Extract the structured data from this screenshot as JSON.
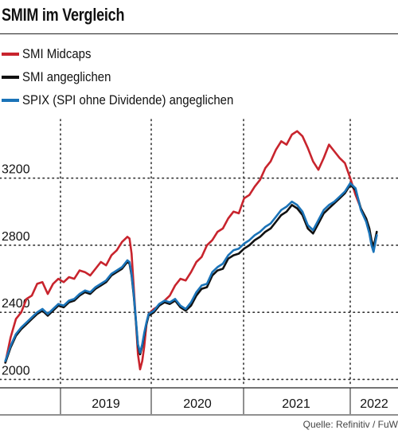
{
  "header": {
    "title": "SMIM im Vergleich"
  },
  "source": "Quelle: Refinitiv / FuW",
  "chart_data": {
    "type": "line",
    "title": "SMIM im Vergleich",
    "xlabel": "",
    "ylabel": "",
    "x_ticks": [
      "2019",
      "2020",
      "2021",
      "2022"
    ],
    "y_ticks": [
      2000,
      2400,
      2800,
      3200
    ],
    "xlim": [
      2018.5,
      2022.25
    ],
    "ylim": [
      1950,
      3550
    ],
    "grid": "dotted",
    "legend_position": "top-left",
    "series": [
      {
        "name": "SMI Midcaps",
        "color": "#c8242d",
        "points": [
          [
            2018.55,
            2100
          ],
          [
            2018.6,
            2250
          ],
          [
            2018.65,
            2360
          ],
          [
            2018.7,
            2400
          ],
          [
            2018.75,
            2480
          ],
          [
            2018.8,
            2500
          ],
          [
            2018.85,
            2570
          ],
          [
            2018.9,
            2580
          ],
          [
            2018.95,
            2510
          ],
          [
            2019.0,
            2570
          ],
          [
            2019.05,
            2600
          ],
          [
            2019.1,
            2580
          ],
          [
            2019.15,
            2610
          ],
          [
            2019.2,
            2600
          ],
          [
            2019.25,
            2650
          ],
          [
            2019.3,
            2640
          ],
          [
            2019.35,
            2620
          ],
          [
            2019.4,
            2660
          ],
          [
            2019.45,
            2700
          ],
          [
            2019.5,
            2680
          ],
          [
            2019.55,
            2740
          ],
          [
            2019.6,
            2770
          ],
          [
            2019.65,
            2820
          ],
          [
            2019.7,
            2850
          ],
          [
            2019.72,
            2840
          ],
          [
            2019.74,
            2750
          ],
          [
            2019.76,
            2550
          ],
          [
            2019.78,
            2350
          ],
          [
            2019.8,
            2150
          ],
          [
            2019.82,
            2060
          ],
          [
            2019.84,
            2110
          ],
          [
            2019.86,
            2200
          ],
          [
            2019.88,
            2330
          ],
          [
            2019.9,
            2390
          ],
          [
            2019.95,
            2420
          ],
          [
            2020.0,
            2440
          ],
          [
            2020.05,
            2470
          ],
          [
            2020.1,
            2500
          ],
          [
            2020.15,
            2560
          ],
          [
            2020.2,
            2600
          ],
          [
            2020.25,
            2590
          ],
          [
            2020.3,
            2640
          ],
          [
            2020.35,
            2700
          ],
          [
            2020.4,
            2730
          ],
          [
            2020.45,
            2800
          ],
          [
            2020.5,
            2830
          ],
          [
            2020.55,
            2880
          ],
          [
            2020.6,
            2900
          ],
          [
            2020.65,
            2960
          ],
          [
            2020.7,
            3000
          ],
          [
            2020.75,
            2990
          ],
          [
            2020.8,
            3080
          ],
          [
            2020.85,
            3100
          ],
          [
            2020.9,
            3150
          ],
          [
            2020.95,
            3190
          ],
          [
            2021.0,
            3260
          ],
          [
            2021.05,
            3300
          ],
          [
            2021.1,
            3370
          ],
          [
            2021.15,
            3420
          ],
          [
            2021.2,
            3400
          ],
          [
            2021.25,
            3460
          ],
          [
            2021.3,
            3480
          ],
          [
            2021.35,
            3450
          ],
          [
            2021.4,
            3380
          ],
          [
            2021.45,
            3300
          ],
          [
            2021.5,
            3250
          ],
          [
            2021.55,
            3320
          ],
          [
            2021.6,
            3400
          ],
          [
            2021.65,
            3360
          ],
          [
            2021.7,
            3320
          ],
          [
            2021.75,
            3290
          ],
          [
            2021.8,
            3200
          ],
          [
            2021.85,
            3100
          ],
          [
            2021.9,
            3020
          ],
          [
            2021.95,
            2950
          ],
          [
            2021.98,
            2880
          ],
          [
            2022.0,
            2820
          ],
          [
            2022.02,
            2780
          ],
          [
            2022.05,
            2860
          ]
        ]
      },
      {
        "name": "SMI angeglichen",
        "color": "#111111",
        "points": [
          [
            2018.55,
            2100
          ],
          [
            2018.6,
            2190
          ],
          [
            2018.65,
            2260
          ],
          [
            2018.7,
            2300
          ],
          [
            2018.75,
            2330
          ],
          [
            2018.8,
            2360
          ],
          [
            2018.85,
            2390
          ],
          [
            2018.9,
            2410
          ],
          [
            2018.95,
            2380
          ],
          [
            2019.0,
            2410
          ],
          [
            2019.05,
            2440
          ],
          [
            2019.1,
            2430
          ],
          [
            2019.15,
            2460
          ],
          [
            2019.2,
            2470
          ],
          [
            2019.25,
            2500
          ],
          [
            2019.3,
            2520
          ],
          [
            2019.35,
            2510
          ],
          [
            2019.4,
            2540
          ],
          [
            2019.45,
            2560
          ],
          [
            2019.5,
            2580
          ],
          [
            2019.55,
            2620
          ],
          [
            2019.6,
            2640
          ],
          [
            2019.65,
            2660
          ],
          [
            2019.7,
            2700
          ],
          [
            2019.72,
            2690
          ],
          [
            2019.74,
            2620
          ],
          [
            2019.76,
            2500
          ],
          [
            2019.78,
            2350
          ],
          [
            2019.8,
            2200
          ],
          [
            2019.82,
            2150
          ],
          [
            2019.84,
            2200
          ],
          [
            2019.86,
            2270
          ],
          [
            2019.88,
            2330
          ],
          [
            2019.9,
            2380
          ],
          [
            2019.95,
            2400
          ],
          [
            2020.0,
            2440
          ],
          [
            2020.05,
            2460
          ],
          [
            2020.1,
            2450
          ],
          [
            2020.15,
            2470
          ],
          [
            2020.2,
            2430
          ],
          [
            2020.25,
            2410
          ],
          [
            2020.3,
            2440
          ],
          [
            2020.35,
            2500
          ],
          [
            2020.4,
            2540
          ],
          [
            2020.45,
            2550
          ],
          [
            2020.5,
            2620
          ],
          [
            2020.55,
            2650
          ],
          [
            2020.6,
            2660
          ],
          [
            2020.65,
            2720
          ],
          [
            2020.7,
            2740
          ],
          [
            2020.75,
            2750
          ],
          [
            2020.8,
            2780
          ],
          [
            2020.85,
            2800
          ],
          [
            2020.9,
            2830
          ],
          [
            2020.95,
            2850
          ],
          [
            2021.0,
            2880
          ],
          [
            2021.05,
            2900
          ],
          [
            2021.1,
            2940
          ],
          [
            2021.15,
            2980
          ],
          [
            2021.2,
            3000
          ],
          [
            2021.25,
            3040
          ],
          [
            2021.3,
            3020
          ],
          [
            2021.35,
            2980
          ],
          [
            2021.4,
            2900
          ],
          [
            2021.45,
            2870
          ],
          [
            2021.5,
            2930
          ],
          [
            2021.55,
            2990
          ],
          [
            2021.6,
            3020
          ],
          [
            2021.65,
            3050
          ],
          [
            2021.7,
            3080
          ],
          [
            2021.75,
            3110
          ],
          [
            2021.8,
            3160
          ],
          [
            2021.85,
            3130
          ],
          [
            2021.9,
            3020
          ],
          [
            2021.95,
            2960
          ],
          [
            2021.98,
            2900
          ],
          [
            2022.0,
            2830
          ],
          [
            2022.02,
            2790
          ],
          [
            2022.05,
            2880
          ]
        ]
      },
      {
        "name": "SPIX (SPI ohne Dividende) angeglichen",
        "color": "#1a73b8",
        "points": [
          [
            2018.55,
            2110
          ],
          [
            2018.6,
            2200
          ],
          [
            2018.65,
            2270
          ],
          [
            2018.7,
            2310
          ],
          [
            2018.75,
            2340
          ],
          [
            2018.8,
            2370
          ],
          [
            2018.85,
            2400
          ],
          [
            2018.9,
            2420
          ],
          [
            2018.95,
            2390
          ],
          [
            2019.0,
            2420
          ],
          [
            2019.05,
            2450
          ],
          [
            2019.1,
            2440
          ],
          [
            2019.15,
            2470
          ],
          [
            2019.2,
            2480
          ],
          [
            2019.25,
            2510
          ],
          [
            2019.3,
            2530
          ],
          [
            2019.35,
            2520
          ],
          [
            2019.4,
            2550
          ],
          [
            2019.45,
            2570
          ],
          [
            2019.5,
            2590
          ],
          [
            2019.55,
            2630
          ],
          [
            2019.6,
            2650
          ],
          [
            2019.65,
            2670
          ],
          [
            2019.7,
            2710
          ],
          [
            2019.72,
            2700
          ],
          [
            2019.74,
            2630
          ],
          [
            2019.76,
            2510
          ],
          [
            2019.78,
            2360
          ],
          [
            2019.8,
            2210
          ],
          [
            2019.82,
            2160
          ],
          [
            2019.84,
            2210
          ],
          [
            2019.86,
            2280
          ],
          [
            2019.88,
            2340
          ],
          [
            2019.9,
            2390
          ],
          [
            2019.95,
            2410
          ],
          [
            2020.0,
            2450
          ],
          [
            2020.05,
            2470
          ],
          [
            2020.1,
            2460
          ],
          [
            2020.15,
            2480
          ],
          [
            2020.2,
            2440
          ],
          [
            2020.25,
            2420
          ],
          [
            2020.3,
            2460
          ],
          [
            2020.35,
            2520
          ],
          [
            2020.4,
            2560
          ],
          [
            2020.45,
            2570
          ],
          [
            2020.5,
            2640
          ],
          [
            2020.55,
            2670
          ],
          [
            2020.6,
            2690
          ],
          [
            2020.65,
            2740
          ],
          [
            2020.7,
            2770
          ],
          [
            2020.75,
            2780
          ],
          [
            2020.8,
            2810
          ],
          [
            2020.85,
            2830
          ],
          [
            2020.9,
            2860
          ],
          [
            2020.95,
            2880
          ],
          [
            2021.0,
            2910
          ],
          [
            2021.05,
            2930
          ],
          [
            2021.1,
            2970
          ],
          [
            2021.15,
            3010
          ],
          [
            2021.2,
            3030
          ],
          [
            2021.25,
            3060
          ],
          [
            2021.3,
            3040
          ],
          [
            2021.35,
            3000
          ],
          [
            2021.4,
            2920
          ],
          [
            2021.45,
            2890
          ],
          [
            2021.5,
            2950
          ],
          [
            2021.55,
            3010
          ],
          [
            2021.6,
            3040
          ],
          [
            2021.65,
            3060
          ],
          [
            2021.7,
            3090
          ],
          [
            2021.75,
            3120
          ],
          [
            2021.8,
            3170
          ],
          [
            2021.85,
            3140
          ],
          [
            2021.9,
            3010
          ],
          [
            2021.95,
            2940
          ],
          [
            2021.98,
            2870
          ],
          [
            2022.0,
            2800
          ],
          [
            2022.02,
            2760
          ],
          [
            2022.05,
            2860
          ]
        ]
      }
    ]
  }
}
